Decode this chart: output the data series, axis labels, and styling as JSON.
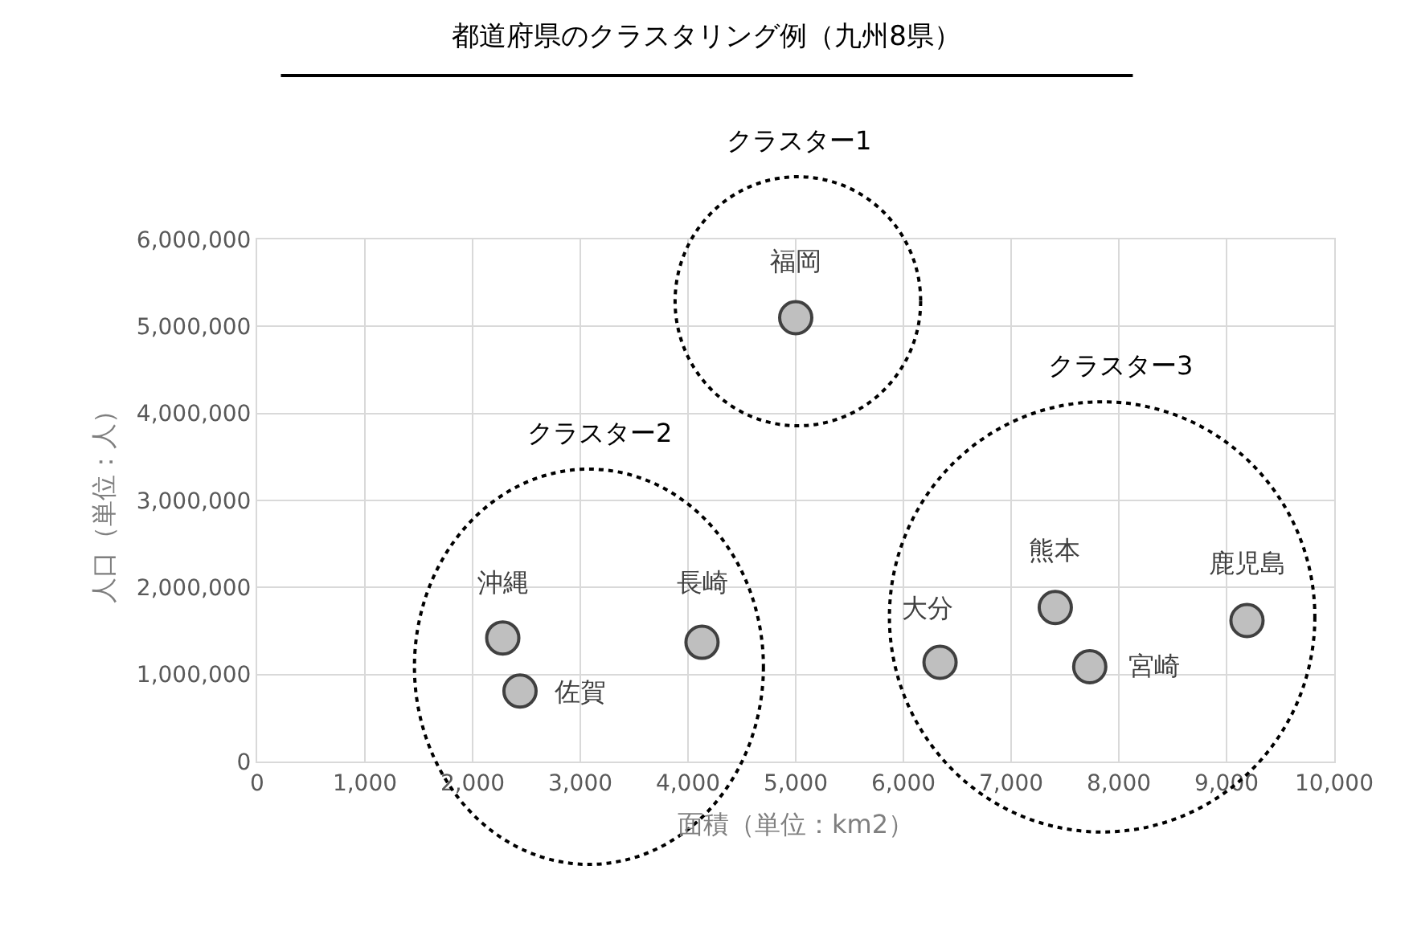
{
  "chart_data": {
    "type": "scatter",
    "title": "都道府県のクラスタリング例（九州8県）",
    "xlabel": "面積（単位：km2）",
    "ylabel": "人口（単位：人）",
    "x": [
      5000,
      2280,
      2440,
      4130,
      6340,
      7410,
      7730,
      9190
    ],
    "series": [
      {
        "color": "#bfbfbf",
        "values": [
          5100000,
          1420000,
          810000,
          1370000,
          1140000,
          1770000,
          1090000,
          1620000
        ]
      }
    ],
    "marker": "circle",
    "grid": true,
    "xlim": [
      0,
      10000
    ],
    "ylim": [
      0,
      6000000
    ],
    "xticks": [
      0,
      {
        "value": 1000,
        "label": "1,000"
      },
      {
        "value": 2000,
        "label": "2,000"
      },
      {
        "value": 3000,
        "label": "3,000"
      },
      {
        "value": 4000,
        "label": "4,000"
      },
      {
        "value": 5000,
        "label": "5,000"
      },
      {
        "value": 6000,
        "label": "6,000"
      },
      {
        "value": 7000,
        "label": "7,000"
      },
      {
        "value": 8000,
        "label": "8,000"
      },
      {
        "value": 9000,
        "label": "9,000"
      },
      {
        "value": 10000,
        "label": "10,000"
      }
    ],
    "yticks": [
      0,
      {
        "value": 1000000,
        "label": "1,000,000"
      },
      {
        "value": 2000000,
        "label": "2,000,000"
      },
      {
        "value": 3000000,
        "label": "3,000,000"
      },
      {
        "value": 4000000,
        "label": "4,000,000"
      },
      {
        "value": 5000000,
        "label": "5,000,000"
      },
      {
        "value": 6000000,
        "label": "6,000,000"
      }
    ],
    "annotations": [
      {
        "text": "福岡",
        "x": 5000,
        "y": 5100000
      },
      {
        "text": "沖縄",
        "x": 2280,
        "y": 1420000
      },
      {
        "text": "佐賀",
        "x": 2440,
        "y": 810000
      },
      {
        "text": "長崎",
        "x": 4130,
        "y": 1370000
      },
      {
        "text": "大分",
        "x": 6340,
        "y": 1140000
      },
      {
        "text": "熊本",
        "x": 7410,
        "y": 1770000
      },
      {
        "text": "宮崎",
        "x": 7730,
        "y": 1090000
      },
      {
        "text": "鹿児島",
        "x": 9190,
        "y": 1620000
      },
      "クラスター1",
      "クラスター2",
      "クラスター3"
    ]
  }
}
